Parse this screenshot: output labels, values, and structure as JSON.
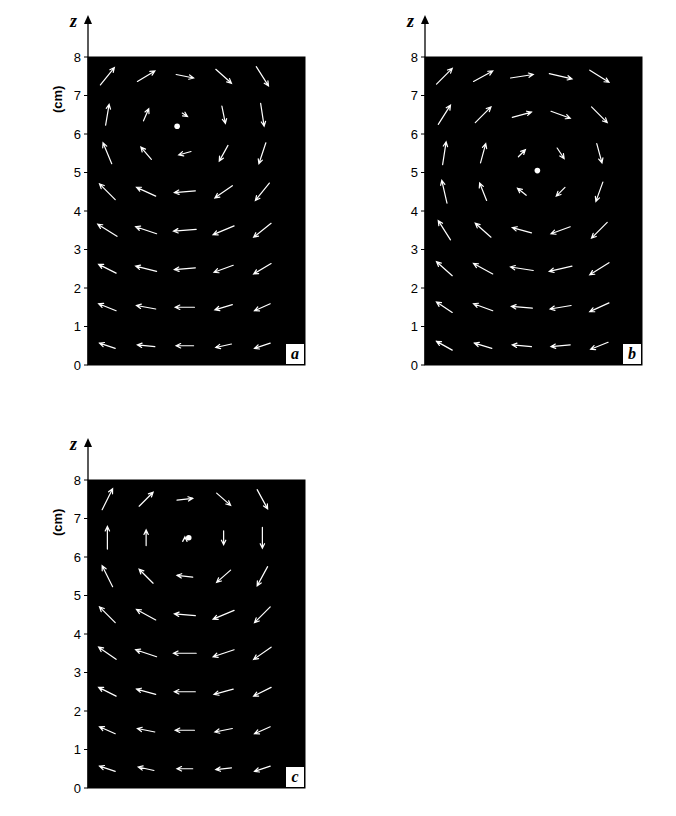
{
  "chart_data": [
    {
      "type": "quiver",
      "label": "a",
      "y_label": "z",
      "y_unit": "(cm)",
      "color": "#ffffff",
      "xlim": [
        0,
        5.6
      ],
      "ylim": [
        0,
        8
      ],
      "yticks": [
        0,
        1,
        2,
        3,
        4,
        5,
        6,
        7,
        8
      ],
      "tick_labels": "y",
      "center": {
        "x": 2.3,
        "y": 6.2
      },
      "x": [
        0.5,
        1.5,
        2.5,
        3.5,
        4.5,
        0.5,
        1.5,
        2.5,
        3.5,
        4.5,
        0.5,
        1.5,
        2.5,
        3.5,
        4.5,
        0.5,
        1.5,
        2.5,
        3.5,
        4.5,
        0.5,
        1.5,
        2.5,
        3.5,
        4.5,
        0.5,
        1.5,
        2.5,
        3.5,
        4.5,
        0.5,
        1.5,
        2.5,
        3.5,
        4.5,
        0.5,
        1.5,
        2.5,
        3.5,
        4.5
      ],
      "y": [
        0.5,
        0.5,
        0.5,
        0.5,
        0.5,
        1.5,
        1.5,
        1.5,
        1.5,
        1.5,
        2.5,
        2.5,
        2.5,
        2.5,
        2.5,
        3.5,
        3.5,
        3.5,
        3.5,
        3.5,
        4.5,
        4.5,
        4.5,
        4.5,
        4.5,
        5.5,
        5.5,
        5.5,
        5.5,
        5.5,
        6.5,
        6.5,
        6.5,
        6.5,
        6.5,
        7.5,
        7.5,
        7.5,
        7.5,
        7.5
      ],
      "u": [
        -0.9,
        -1.0,
        -1.0,
        -0.9,
        -0.9,
        -1.0,
        -1.1,
        -1.1,
        -1.0,
        -0.9,
        -1.0,
        -1.2,
        -1.2,
        -1.1,
        -1.0,
        -1.1,
        -1.2,
        -1.3,
        -1.2,
        -1.0,
        -0.9,
        -1.1,
        -1.2,
        -1.0,
        -0.8,
        -0.5,
        -0.6,
        -0.7,
        -0.5,
        -0.4,
        0.2,
        0.3,
        0.3,
        0.2,
        0.2,
        0.8,
        1.0,
        1.0,
        0.9,
        0.7
      ],
      "w": [
        0.3,
        0.1,
        0,
        -0.2,
        -0.3,
        0.4,
        0.2,
        0,
        -0.3,
        -0.4,
        0.5,
        0.3,
        -0.1,
        -0.4,
        -0.6,
        0.7,
        0.4,
        -0.1,
        -0.5,
        -0.8,
        0.9,
        0.5,
        -0.1,
        -0.7,
        -1.0,
        1.2,
        0.7,
        -0.2,
        -0.9,
        -1.2,
        1.2,
        0.7,
        -0.2,
        -1.0,
        -1.3,
        1.0,
        0.6,
        -0.2,
        -0.8,
        -1.1
      ]
    },
    {
      "type": "quiver",
      "label": "b",
      "y_label": "z",
      "color": "#ffffff",
      "xlim": [
        0,
        5.6
      ],
      "ylim": [
        0,
        8
      ],
      "yticks": [
        0,
        1,
        2,
        3,
        4,
        5,
        6,
        7,
        8
      ],
      "tick_labels": "y",
      "center": {
        "x": 2.9,
        "y": 5.05
      },
      "x": [
        0.5,
        1.5,
        2.5,
        3.5,
        4.5,
        0.5,
        1.5,
        2.5,
        3.5,
        4.5,
        0.5,
        1.5,
        2.5,
        3.5,
        4.5,
        0.5,
        1.5,
        2.5,
        3.5,
        4.5,
        0.5,
        1.5,
        2.5,
        3.5,
        4.5,
        0.5,
        1.5,
        2.5,
        3.5,
        4.5,
        0.5,
        1.5,
        2.5,
        3.5,
        4.5,
        0.5,
        1.5,
        2.5,
        3.5,
        4.5
      ],
      "y": [
        0.5,
        0.5,
        0.5,
        0.5,
        0.5,
        1.5,
        1.5,
        1.5,
        1.5,
        1.5,
        2.5,
        2.5,
        2.5,
        2.5,
        2.5,
        3.5,
        3.5,
        3.5,
        3.5,
        3.5,
        4.5,
        4.5,
        4.5,
        4.5,
        4.5,
        5.5,
        5.5,
        5.5,
        5.5,
        5.5,
        6.5,
        6.5,
        6.5,
        6.5,
        6.5,
        7.5,
        7.5,
        7.5,
        7.5,
        7.5
      ],
      "u": [
        -0.9,
        -1.0,
        -1.1,
        -1.1,
        -1.0,
        -0.9,
        -1.1,
        -1.2,
        -1.2,
        -1.1,
        -0.9,
        -1.1,
        -1.3,
        -1.3,
        -1.1,
        -0.7,
        -0.9,
        -1.1,
        -1.1,
        -0.9,
        -0.3,
        -0.4,
        -0.5,
        -0.5,
        -0.4,
        0.2,
        0.3,
        0.4,
        0.4,
        0.3,
        0.7,
        0.9,
        1.1,
        1.1,
        0.9,
        0.9,
        1.1,
        1.3,
        1.3,
        1.1
      ],
      "w": [
        0.5,
        0.3,
        0.1,
        -0.1,
        -0.4,
        0.6,
        0.4,
        0.1,
        -0.2,
        -0.5,
        0.8,
        0.6,
        0.2,
        -0.3,
        -0.7,
        1.1,
        0.8,
        0.3,
        -0.4,
        -0.9,
        1.3,
        1.0,
        0.4,
        -0.5,
        -1.1,
        1.3,
        1.1,
        0.4,
        -0.6,
        -1.1,
        1.1,
        0.9,
        0.3,
        -0.4,
        -0.9,
        0.9,
        0.6,
        0.2,
        -0.3,
        -0.7
      ]
    },
    {
      "type": "quiver",
      "label": "c",
      "y_label": "z",
      "y_unit": "(cm)",
      "color": "#ffffff",
      "xlim": [
        0,
        5.6
      ],
      "ylim": [
        0,
        8
      ],
      "yticks": [
        0,
        1,
        2,
        3,
        4,
        5,
        6,
        7,
        8
      ],
      "tick_labels": "y",
      "center": {
        "x": 2.6,
        "y": 6.5
      },
      "x": [
        0.5,
        1.5,
        2.5,
        3.5,
        4.5,
        0.5,
        1.5,
        2.5,
        3.5,
        4.5,
        0.5,
        1.5,
        2.5,
        3.5,
        4.5,
        0.5,
        1.5,
        2.5,
        3.5,
        4.5,
        0.5,
        1.5,
        2.5,
        3.5,
        4.5,
        0.5,
        1.5,
        2.5,
        3.5,
        4.5,
        0.5,
        1.5,
        2.5,
        3.5,
        4.5,
        0.5,
        1.5,
        2.5,
        3.5,
        4.5
      ],
      "y": [
        0.5,
        0.5,
        0.5,
        0.5,
        0.5,
        1.5,
        1.5,
        1.5,
        1.5,
        1.5,
        2.5,
        2.5,
        2.5,
        2.5,
        2.5,
        3.5,
        3.5,
        3.5,
        3.5,
        3.5,
        4.5,
        4.5,
        4.5,
        4.5,
        4.5,
        5.5,
        5.5,
        5.5,
        5.5,
        5.5,
        6.5,
        6.5,
        6.5,
        6.5,
        6.5,
        7.5,
        7.5,
        7.5,
        7.5,
        7.5
      ],
      "u": [
        -0.9,
        -0.9,
        -0.9,
        -0.9,
        -0.9,
        -0.9,
        -1.0,
        -1.1,
        -1.0,
        -0.9,
        -1.0,
        -1.1,
        -1.2,
        -1.1,
        -1.0,
        -1.0,
        -1.2,
        -1.3,
        -1.2,
        -1.0,
        -0.9,
        -1.1,
        -1.2,
        -1.2,
        -0.9,
        -0.6,
        -0.8,
        -0.9,
        -0.8,
        -0.6,
        0,
        0,
        0,
        0,
        0,
        0.6,
        0.8,
        0.9,
        0.8,
        0.6
      ],
      "w": [
        0.3,
        0.2,
        0,
        -0.1,
        -0.3,
        0.4,
        0.2,
        0,
        -0.2,
        -0.4,
        0.5,
        0.3,
        0,
        -0.3,
        -0.5,
        0.7,
        0.4,
        0,
        -0.4,
        -0.7,
        0.9,
        0.6,
        0.1,
        -0.5,
        -0.9,
        1.2,
        0.8,
        0.1,
        -0.7,
        -1.1,
        1.3,
        0.9,
        0.1,
        -0.8,
        -1.2,
        1.2,
        0.8,
        0.1,
        -0.7,
        -1.1
      ]
    }
  ]
}
